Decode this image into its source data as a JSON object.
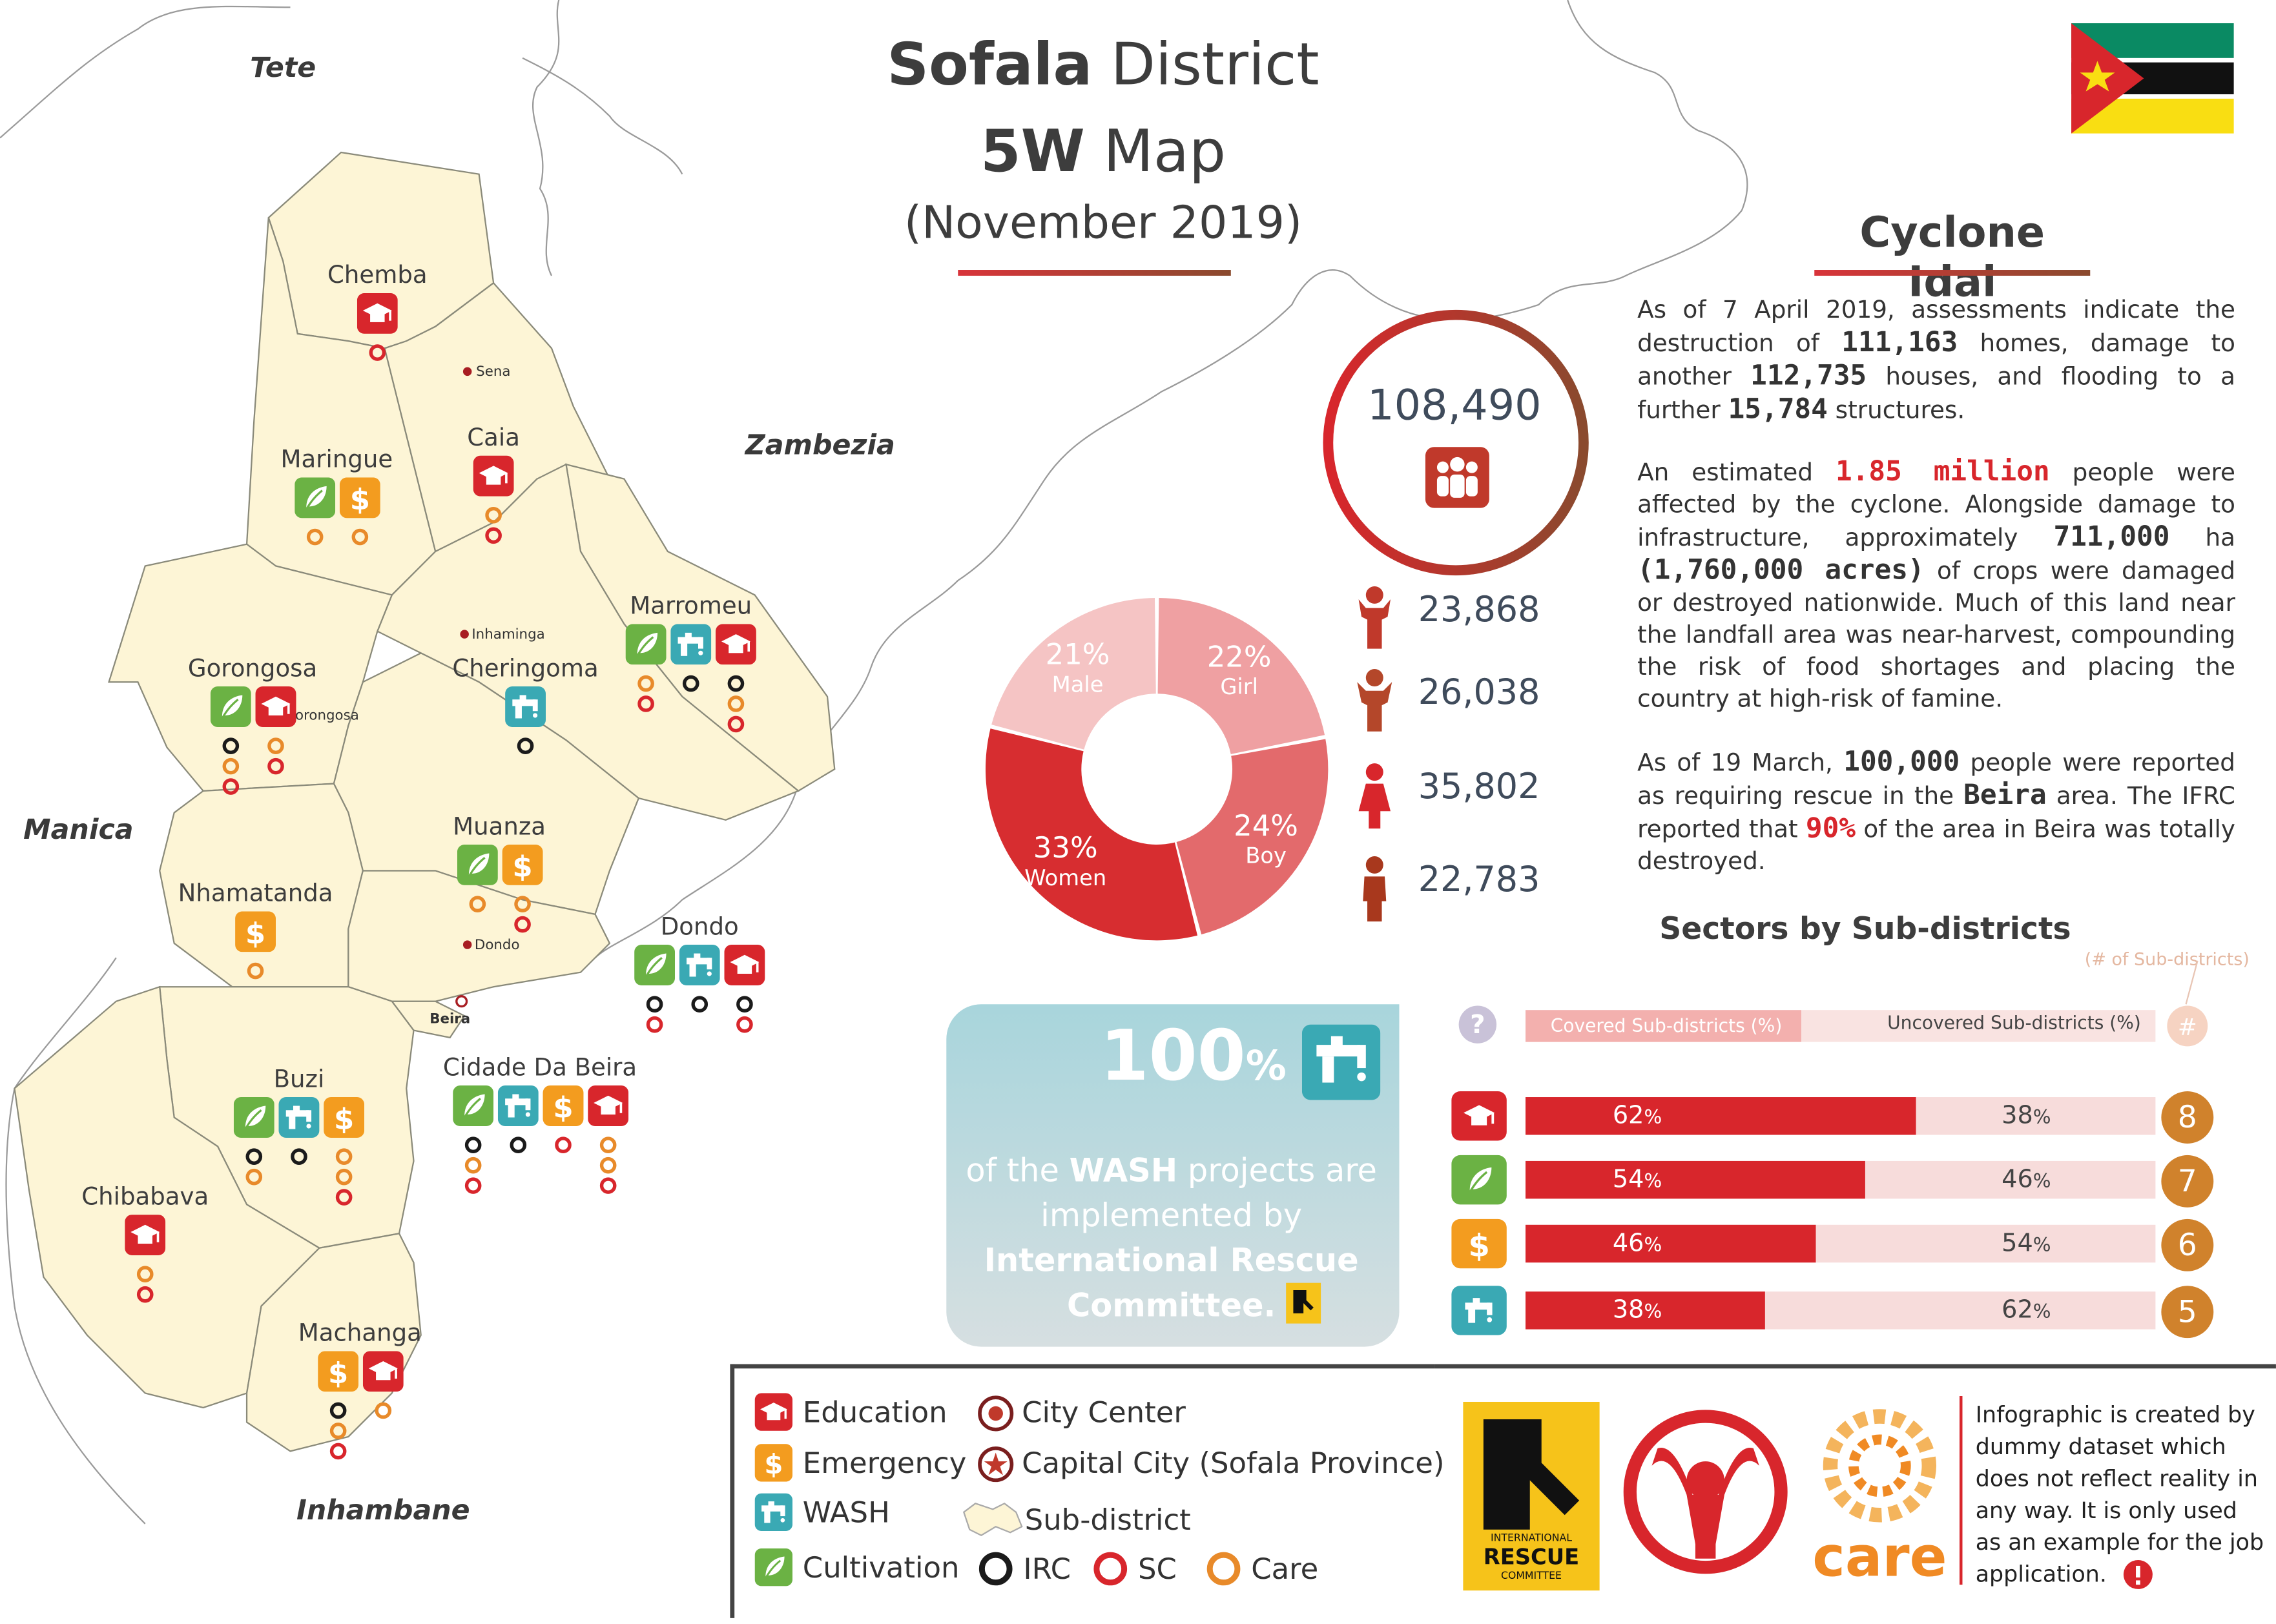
{
  "header": {
    "title_bold": "Sofala",
    "title_rest": " District",
    "subtitle_bold": "5W",
    "subtitle_rest": " Map",
    "date": "(November 2019)"
  },
  "cyclone": {
    "title": "Cyclone Idai",
    "p1": [
      "As of 7 April 2019, assessments indicate the destruction of ",
      "111,163",
      " homes, damage to another ",
      "112,735",
      " houses, and flooding to a further ",
      "15,784",
      " structures."
    ],
    "p2": [
      "An estimated ",
      "1.85 million",
      " people were affected by the cyclone. Alongside damage to infrastructure, approximately ",
      "711,000",
      " ha ",
      "(1,760,000 acres)",
      " of crops were damaged or destroyed nationwide. Much of this land near the landfall area was near-harvest, compounding the risk of food shortages and placing the country at high-risk of famine."
    ],
    "p3": [
      "As of 19 March, ",
      "100,000",
      " people were reported as requiring rescue in the ",
      "Beira",
      " area. The IFRC reported that ",
      "90%",
      " of the area in Beira was totally destroyed."
    ]
  },
  "people": {
    "total": "108,490",
    "stats": [
      {
        "icon": "girl-icon",
        "value": "23,868"
      },
      {
        "icon": "boy-icon",
        "value": "26,038"
      },
      {
        "icon": "woman-icon",
        "value": "35,802"
      },
      {
        "icon": "man-icon",
        "value": "22,783"
      }
    ],
    "donut": [
      {
        "label": "Girl",
        "pct": "22%",
        "value": 22,
        "color": "#efa0a2"
      },
      {
        "label": "Boy",
        "pct": "24%",
        "value": 24,
        "color": "#e36a6c"
      },
      {
        "label": "Women",
        "pct": "33%",
        "value": 33,
        "color": "#d72d30"
      },
      {
        "label": "Male",
        "pct": "21%",
        "value": 21,
        "color": "#f5c4c4"
      }
    ]
  },
  "wash_card": {
    "pct_num": "100",
    "pct_sign": "%",
    "line1_pre": "of the ",
    "line1_bold": "WASH",
    "line1_post": " projects are",
    "line2": "implemented by",
    "line3": "International Rescue",
    "line4": "Committee."
  },
  "sectors": {
    "title": "Sectors by Sub-districts",
    "count_note": "(# of Sub-districts)",
    "covered_label": "Covered Sub-districts (%)",
    "uncovered_label": "Uncovered Sub-districts (%)",
    "rows": [
      {
        "sector": "Education",
        "icon": "education-icon",
        "covered": 62,
        "covered_text": "62",
        "uncovered_text": "38",
        "count": "8",
        "color": "#d8262c"
      },
      {
        "sector": "Cultivation",
        "icon": "cultivation-icon",
        "covered": 54,
        "covered_text": "54",
        "uncovered_text": "46",
        "count": "7",
        "color": "#6bb244"
      },
      {
        "sector": "Emergency",
        "icon": "emergency-icon",
        "covered": 46,
        "covered_text": "46",
        "uncovered_text": "54",
        "count": "6",
        "color": "#f39c1f"
      },
      {
        "sector": "WASH",
        "icon": "wash-icon",
        "covered": 38,
        "covered_text": "38",
        "uncovered_text": "62",
        "count": "5",
        "color": "#3aa9b4"
      }
    ],
    "pct_sign": "%"
  },
  "legend": {
    "items": [
      {
        "label": "Education",
        "icon": "education-icon"
      },
      {
        "label": "Emergency",
        "icon": "emergency-icon"
      },
      {
        "label": "WASH",
        "icon": "wash-icon"
      },
      {
        "label": "Cultivation",
        "icon": "cultivation-icon"
      }
    ],
    "city_center": "City Center",
    "capital_city": "Capital City (Sofala Province)",
    "sub_district": "Sub-district",
    "orgs": [
      {
        "label": "IRC",
        "color": "#1b1b1b"
      },
      {
        "label": "SC",
        "color": "#d8262c"
      },
      {
        "label": "Care",
        "color": "#e88a2a"
      }
    ]
  },
  "logos": {
    "irc_lines": [
      "INTERNATIONAL",
      "RESCUE",
      "COMMITTEE"
    ],
    "care": "care"
  },
  "note": "Infographic is created by dummy dataset which does not reflect reality in any way. It is only used as an example for the job application.",
  "map": {
    "provinces": [
      "Tete",
      "Zambezia",
      "Manica",
      "Inhambane"
    ],
    "towns": [
      "Sena",
      "Inhaminga",
      "Gorongosa",
      "Dondo",
      "Beira"
    ],
    "districts": [
      {
        "name": "Chemba"
      },
      {
        "name": "Maringue"
      },
      {
        "name": "Caia"
      },
      {
        "name": "Marromeu"
      },
      {
        "name": "Gorongosa"
      },
      {
        "name": "Cheringoma"
      },
      {
        "name": "Muanza"
      },
      {
        "name": "Nhamatanda"
      },
      {
        "name": "Dondo"
      },
      {
        "name": "Buzi"
      },
      {
        "name": "Cidade Da Beira"
      },
      {
        "name": "Chibabava"
      },
      {
        "name": "Machanga"
      }
    ]
  },
  "colors": {
    "education": "#d8262c",
    "emergency": "#f39c1f",
    "wash": "#3aa9b4",
    "cultivation": "#6bb244",
    "land": "#fdf5d6",
    "irc": "#1b1b1b",
    "sc": "#d8262c",
    "care": "#e88a2a"
  }
}
